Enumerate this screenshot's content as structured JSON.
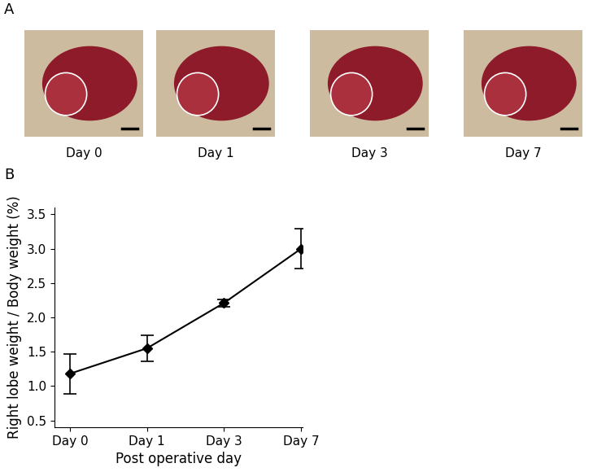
{
  "panel_a": {
    "label": "A",
    "captions": [
      "Day 0",
      "Day 1",
      "Day 3",
      "Day 7"
    ]
  },
  "chart_data": {
    "type": "line",
    "panel_label": "B",
    "x_label": "Post operative day",
    "y_label": "Right lobe weight / Body weight (%)",
    "categories": [
      "Day 0",
      "Day 1",
      "Day 3",
      "Day 7"
    ],
    "values": [
      1.18,
      1.55,
      2.21,
      3.0
    ],
    "errors": [
      0.29,
      0.19,
      0.05,
      0.29
    ],
    "color": "#000000",
    "marker": "diamond",
    "line_style": "solid",
    "ylim": [
      0.4,
      3.6
    ],
    "yticks": [
      0.5,
      {
        "value": 1,
        "label": "1.0"
      },
      1.5,
      {
        "value": 2,
        "label": "2.0"
      },
      2.5,
      {
        "value": 3,
        "label": "3.0"
      },
      3.5
    ],
    "grid": false
  }
}
